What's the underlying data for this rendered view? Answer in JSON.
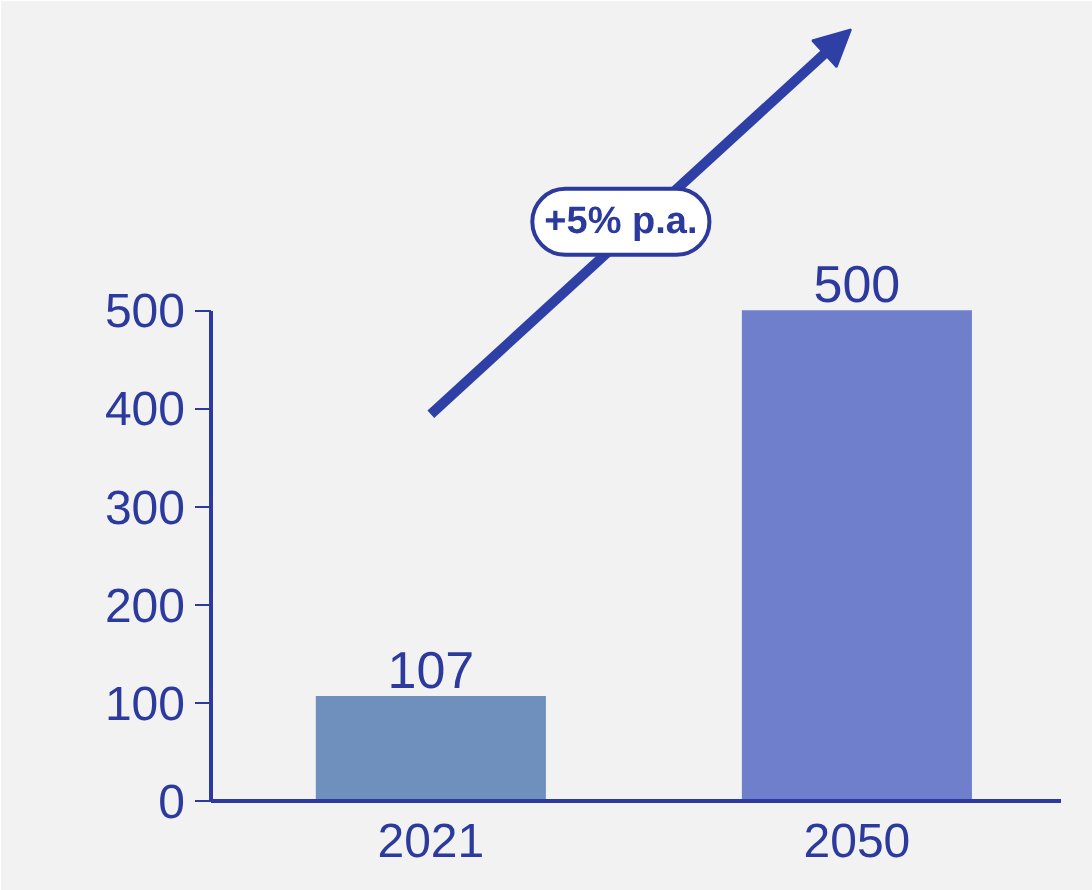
{
  "chart_data": {
    "type": "bar",
    "categories": [
      "2021",
      "2050"
    ],
    "values": [
      107,
      500
    ],
    "colors": [
      "#6f8fbd",
      "#6f7fcc"
    ],
    "ylim": [
      0,
      815
    ],
    "yticks": [
      0,
      100,
      200,
      300,
      400,
      500
    ],
    "data_labels": true,
    "annotations": [
      "+5% p.a."
    ]
  }
}
